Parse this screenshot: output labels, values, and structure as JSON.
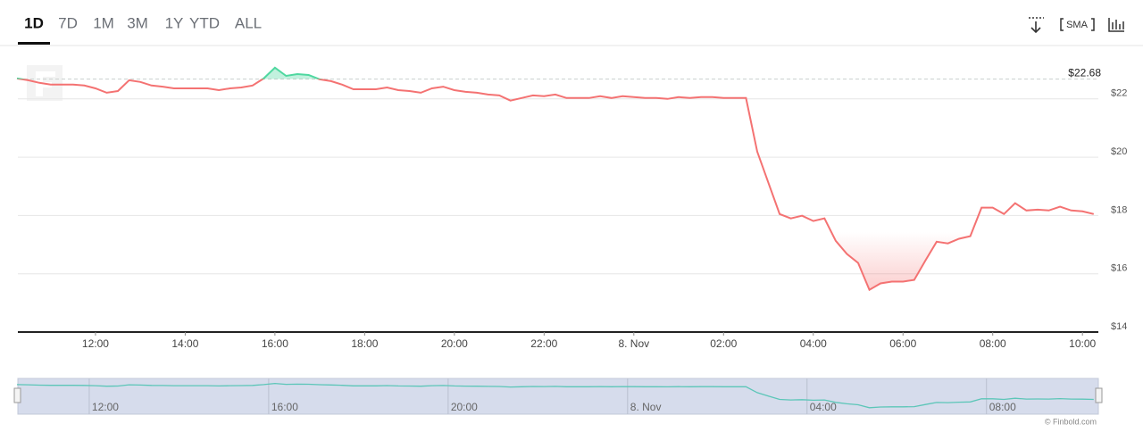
{
  "toolbar": {
    "ranges": [
      "1D",
      "7D",
      "1M",
      "3M",
      "1Y",
      "YTD",
      "ALL"
    ],
    "indicator": "SMA"
  },
  "chart_data": {
    "type": "line",
    "x": [
      "10:15",
      "10:30",
      "10:45",
      "11:00",
      "11:15",
      "11:30",
      "11:45",
      "12:00",
      "12:15",
      "12:30",
      "12:45",
      "13:00",
      "13:15",
      "13:30",
      "13:45",
      "14:00",
      "14:15",
      "14:30",
      "14:45",
      "15:00",
      "15:15",
      "15:30",
      "15:45",
      "16:00",
      "16:15",
      "16:30",
      "16:45",
      "17:00",
      "17:15",
      "17:30",
      "17:45",
      "18:00",
      "18:15",
      "18:30",
      "18:45",
      "19:00",
      "19:15",
      "19:30",
      "19:45",
      "20:00",
      "20:15",
      "20:30",
      "20:45",
      "21:00",
      "21:15",
      "21:30",
      "21:45",
      "22:00",
      "22:15",
      "22:30",
      "22:45",
      "23:00",
      "23:15",
      "23:30",
      "23:45",
      "00:00",
      "00:15",
      "00:30",
      "00:45",
      "01:00",
      "01:15",
      "01:30",
      "01:45",
      "02:00",
      "02:15",
      "02:30",
      "02:45",
      "03:00",
      "03:15",
      "03:30",
      "03:45",
      "04:00",
      "04:15",
      "04:30",
      "04:45",
      "05:00",
      "05:15",
      "05:30",
      "05:45",
      "06:00",
      "06:15",
      "06:30",
      "06:45",
      "07:00",
      "07:15",
      "07:30",
      "07:45",
      "08:00",
      "08:15",
      "08:30",
      "08:45",
      "09:00",
      "09:15",
      "09:30",
      "09:45",
      "10:00",
      "10:15"
    ],
    "values": [
      22.7,
      22.64,
      22.55,
      22.49,
      22.49,
      22.49,
      22.46,
      22.36,
      22.21,
      22.27,
      22.64,
      22.58,
      22.46,
      22.42,
      22.36,
      22.36,
      22.36,
      22.36,
      22.3,
      22.36,
      22.39,
      22.46,
      22.7,
      23.07,
      22.79,
      22.85,
      22.82,
      22.67,
      22.61,
      22.49,
      22.33,
      22.33,
      22.33,
      22.39,
      22.3,
      22.27,
      22.21,
      22.36,
      22.42,
      22.3,
      22.24,
      22.21,
      22.15,
      22.12,
      21.94,
      22.03,
      22.12,
      22.09,
      22.15,
      22.03,
      22.03,
      22.03,
      22.09,
      22.03,
      22.09,
      22.06,
      22.03,
      22.03,
      22.0,
      22.06,
      22.03,
      22.06,
      22.06,
      22.03,
      22.03,
      22.03,
      20.19,
      19.12,
      18.05,
      17.9,
      17.99,
      17.81,
      17.9,
      17.13,
      16.68,
      16.37,
      15.45,
      15.67,
      15.73,
      15.73,
      15.79,
      16.46,
      17.1,
      17.04,
      17.2,
      17.29,
      18.27,
      18.27,
      18.05,
      18.42,
      18.17,
      18.2,
      18.17,
      18.3,
      18.17,
      18.14,
      18.05
    ],
    "color": "#f47272",
    "up_color": "#4fd8a0",
    "baseline": {
      "value": 22.68,
      "label": "$22.68"
    },
    "ylim": [
      14,
      23.8
    ],
    "yticks": [
      {
        "value": 14,
        "label": "$14"
      },
      {
        "value": 16,
        "label": "$16"
      },
      {
        "value": 18,
        "label": "$18"
      },
      {
        "value": 20,
        "label": "$20"
      },
      {
        "value": 22,
        "label": "$22"
      }
    ],
    "xticks": [
      "12:00",
      "14:00",
      "16:00",
      "18:00",
      "20:00",
      "22:00",
      {
        "value": "00:00",
        "label": "8. Nov"
      },
      "02:00",
      "04:00",
      "06:00",
      "08:00",
      "10:00"
    ],
    "grid": true,
    "navigator": {
      "color": "#5cc6b8",
      "xticks": [
        "12:00",
        "16:00",
        "20:00",
        {
          "value": "00:00",
          "label": "8. Nov"
        },
        "04:00",
        "08:00"
      ]
    }
  },
  "credit": "© Finbold.com"
}
